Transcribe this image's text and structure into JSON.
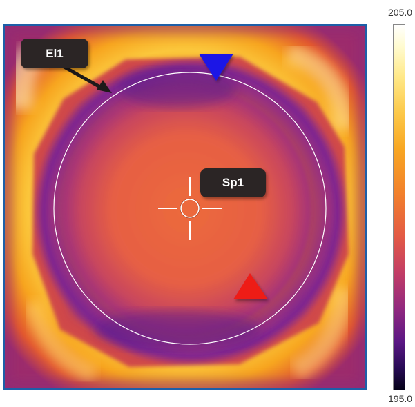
{
  "colorbar": {
    "max_label": "205.0",
    "min_label": "195.0"
  },
  "annotations": {
    "ellipse_label": "El1",
    "spot_label": "Sp1"
  },
  "markers": {
    "cold_marker_color": "#1e15e6",
    "hot_marker_color": "#ee1a17"
  },
  "palette": {
    "frame_border": "#1d5fa8",
    "label_background": "#2b2525"
  }
}
